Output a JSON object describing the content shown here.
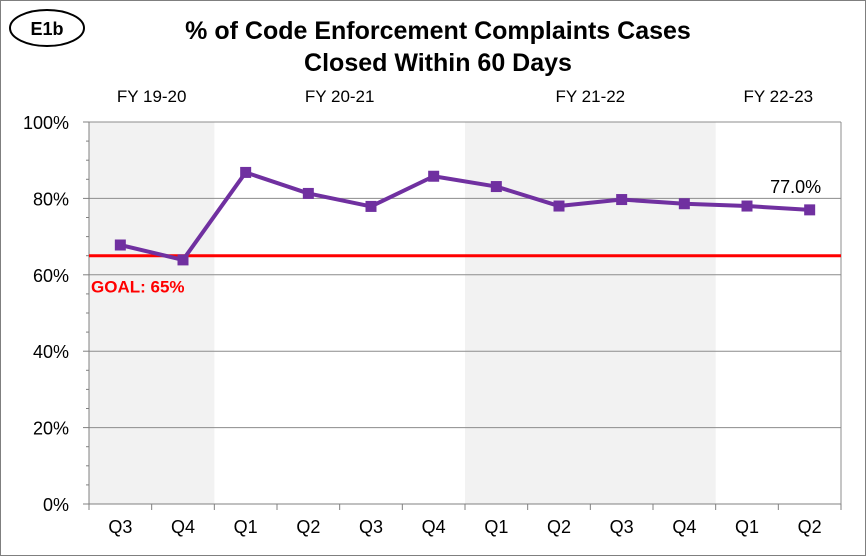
{
  "badge": "E1b",
  "chart_data": {
    "type": "line",
    "title": "% of Code Enforcement Complaints Cases",
    "subtitle": "Closed Within 60 Days",
    "categories": [
      "Q3",
      "Q4",
      "Q1",
      "Q2",
      "Q3",
      "Q4",
      "Q1",
      "Q2",
      "Q3",
      "Q4",
      "Q1",
      "Q2"
    ],
    "fiscal_years": [
      {
        "label": "FY 19-20",
        "start": 0,
        "end": 1,
        "shaded": true
      },
      {
        "label": "FY 20-21",
        "start": 2,
        "end": 5,
        "shaded": false
      },
      {
        "label": "FY 21-22",
        "start": 6,
        "end": 9,
        "shaded": true
      },
      {
        "label": "FY 22-23",
        "start": 10,
        "end": 11,
        "shaded": false
      }
    ],
    "series": [
      {
        "values": [
          67.8,
          63.9,
          86.8,
          81.3,
          77.9,
          85.8,
          83.1,
          78.0,
          79.7,
          78.6,
          78.0,
          77.0
        ],
        "color": "#7030a0",
        "data_label": {
          "index": 11,
          "text": "77.0%"
        }
      }
    ],
    "ylim": [
      0,
      100
    ],
    "y_ticks": [
      {
        "value": 0,
        "label": "0%"
      },
      {
        "value": 20,
        "label": "20%"
      },
      {
        "value": 40,
        "label": "40%"
      },
      {
        "value": 60,
        "label": "60%"
      },
      {
        "value": 80,
        "label": "80%"
      },
      {
        "value": 100,
        "label": "100%"
      }
    ],
    "goal": {
      "value": 65,
      "label": "GOAL: 65%",
      "color": "#ff0000"
    },
    "grid": true,
    "shade_color": "#f2f2f2",
    "legend": "none"
  }
}
